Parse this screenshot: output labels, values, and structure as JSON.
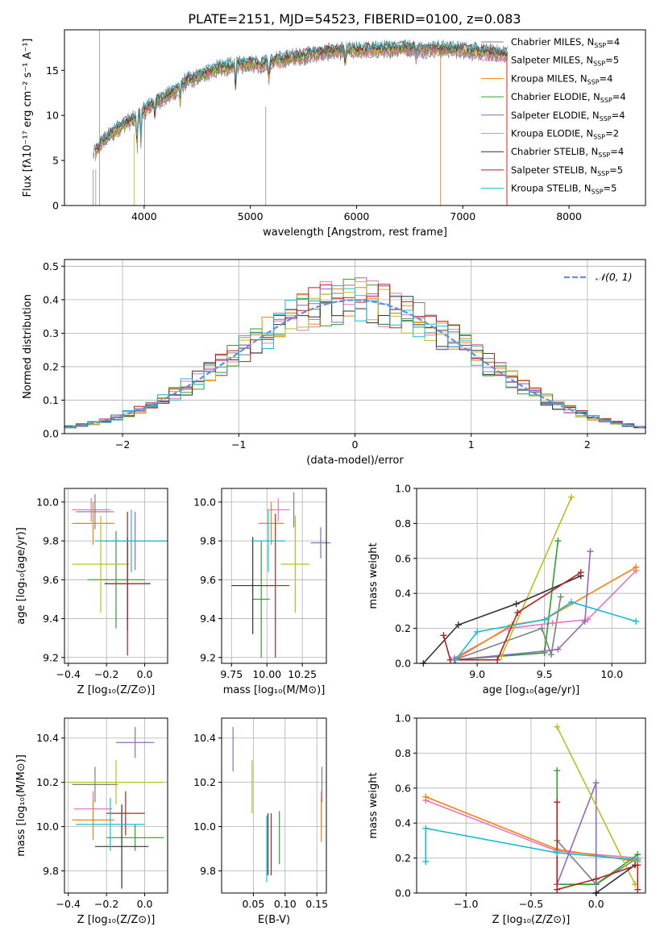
{
  "title": "PLATE=2151, MJD=54523, FIBERID=0100, z=0.083",
  "colors": {
    "Chabrier MILES": "#7f7f7f",
    "Salpeter MILES": "#e377c2",
    "Kroupa MILES": "#ff7f0e",
    "Chabrier ELODIE": "#2ca02c",
    "Salpeter ELODIE": "#9467bd",
    "Kroupa ELODIE": "#bcbd22",
    "Chabrier STELIB": "#333333",
    "Salpeter STELIB": "#b22222",
    "Kroupa STELIB": "#17becf",
    "gauss": "#6a8fd6"
  },
  "chart_data": [
    {
      "id": "spectrum",
      "type": "line",
      "xlabel": "wavelength [Angstrom, rest frame]",
      "ylabel": "Flux [fλ10⁻¹⁷ erg cm⁻² s⁻¹ A⁻¹]",
      "xlim": [
        3250,
        8720
      ],
      "ylim": [
        0,
        19.5
      ],
      "xticks": [
        "4000",
        "5000",
        "6000",
        "7000",
        "8000"
      ],
      "yticks": [
        "0",
        "5",
        "10",
        "15"
      ],
      "grid": false,
      "legend_position": "right",
      "legend": [
        "Chabrier MILES, N_SSP=4",
        "Salpeter MILES, N_SSP=5",
        "Kroupa MILES, N_SSP=4",
        "Chabrier ELODIE, N_SSP=4",
        "Salpeter ELODIE, N_SSP=4",
        "Kroupa ELODIE, N_SSP=2",
        "Chabrier STELIB, N_SSP=4",
        "Salpeter STELIB, N_SSP=5",
        "Kroupa STELIB, N_SSP=5"
      ],
      "data_curve": {
        "x": [
          3520,
          3600,
          3700,
          3800,
          3900,
          4000,
          4100,
          4200,
          4300,
          4400,
          4500,
          4600,
          4700,
          4800,
          4900,
          5000,
          5100,
          5200,
          5300,
          5400,
          5500,
          5600,
          5700,
          5800,
          5900,
          6000,
          6100,
          6200,
          6300,
          6400,
          6500,
          6600,
          6700,
          6800,
          6900,
          7000,
          7100,
          7200,
          7300,
          7400
        ],
        "y": [
          5.5,
          7.0,
          8.0,
          9.0,
          9.5,
          10.5,
          11.5,
          12.0,
          12.8,
          13.8,
          14.2,
          14.8,
          15.2,
          15.4,
          15.6,
          15.8,
          15.6,
          16.0,
          16.2,
          16.5,
          16.6,
          16.8,
          17.0,
          17.1,
          17.2,
          17.2,
          17.3,
          17.3,
          17.4,
          17.5,
          17.5,
          17.3,
          17.4,
          17.4,
          17.3,
          17.3,
          17.1,
          17.0,
          16.9,
          16.8
        ]
      }
    },
    {
      "id": "residuals",
      "type": "bar",
      "xlabel": "(data-model)/error",
      "ylabel": "Normed distribution",
      "xlim": [
        -2.5,
        2.5
      ],
      "ylim": [
        0,
        0.52
      ],
      "xticks": [
        "−2",
        "−1",
        "0",
        "1",
        "2"
      ],
      "yticks": [
        "0.0",
        "0.1",
        "0.2",
        "0.3",
        "0.4",
        "0.5"
      ],
      "grid": true,
      "legend_position": "top-right",
      "legend": [
        "𝒩(0, 1)"
      ],
      "bin_width": 0.1
    },
    {
      "id": "age-vs-Z",
      "type": "scatter",
      "xlabel": "Z [log₁₀(Z/Z⊙)]",
      "ylabel": "age  [log₁₀(age/yr)]",
      "xlim": [
        -0.42,
        0.12
      ],
      "ylim": [
        9.17,
        10.07
      ],
      "xticks": [
        "−0.4",
        "−0.2",
        "0.0"
      ],
      "yticks": [
        "9.2",
        "9.4",
        "9.6",
        "9.8",
        "10.0"
      ],
      "grid": true,
      "points": [
        {
          "x": -0.26,
          "xerr": 0.1,
          "y": 9.95,
          "yerr": 0.09
        },
        {
          "x": -0.28,
          "xerr": 0.1,
          "y": 9.96,
          "yerr": 0.06
        },
        {
          "x": -0.27,
          "xerr": 0.11,
          "y": 9.89,
          "yerr": 0.11
        },
        {
          "x": -0.15,
          "xerr": 0.15,
          "y": 9.6,
          "yerr": 0.25
        },
        {
          "x": -0.05,
          "xerr": 0.17,
          "y": 9.8,
          "yerr": 0.15
        },
        {
          "x": -0.23,
          "xerr": 0.15,
          "y": 9.68,
          "yerr": 0.25
        },
        {
          "x": -0.09,
          "xerr": 0.12,
          "y": 9.58,
          "yerr": 0.24
        },
        {
          "x": -0.09,
          "xerr": 0.1,
          "y": 9.58,
          "yerr": 0.37
        },
        {
          "x": -0.07,
          "xerr": 0.19,
          "y": 9.8,
          "yerr": 0.16
        }
      ]
    },
    {
      "id": "age-vs-mass",
      "type": "scatter",
      "xlabel": "mass [log₁₀(M/M⊙)]",
      "ylabel": "",
      "xlim": [
        9.68,
        10.42
      ],
      "ylim": [
        9.17,
        10.07
      ],
      "xticks": [
        "9.75",
        "10.00",
        "10.25"
      ],
      "yticks": [
        "9.2",
        "9.4",
        "9.6",
        "9.8",
        "10.0"
      ],
      "grid": true,
      "points": [
        {
          "x": 10.19,
          "xerr": 0.0,
          "y": 9.96,
          "yerr": 0.09
        },
        {
          "x": 10.08,
          "xerr": 0.08,
          "y": 9.96,
          "yerr": 0.06
        },
        {
          "x": 10.03,
          "xerr": 0.09,
          "y": 9.89,
          "yerr": 0.11
        },
        {
          "x": 9.96,
          "xerr": 0.06,
          "y": 9.5,
          "yerr": 0.3
        },
        {
          "x": 10.38,
          "xerr": 0.07,
          "y": 9.79,
          "yerr": 0.08
        },
        {
          "x": 10.2,
          "xerr": 0.1,
          "y": 9.68,
          "yerr": 0.25
        },
        {
          "x": 9.9,
          "xerr": 0.15,
          "y": 9.57,
          "yerr": 0.25
        },
        {
          "x": 10.06,
          "xerr": 0.1,
          "y": 9.57,
          "yerr": 0.37
        },
        {
          "x": 10.01,
          "xerr": 0.12,
          "y": 9.8,
          "yerr": 0.16
        }
      ]
    },
    {
      "id": "weight-vs-age",
      "type": "line",
      "xlabel": "age  [log₁₀(age/yr)]",
      "ylabel": "mass weight",
      "xlim": [
        8.55,
        10.25
      ],
      "ylim": [
        0,
        1
      ],
      "xticks": [
        "9.0",
        "9.5",
        "10.0"
      ],
      "yticks": [
        "0.0",
        "0.2",
        "0.4",
        "0.6",
        "0.8",
        "1.0"
      ],
      "grid": true,
      "series": [
        {
          "x": [
            8.83,
            9.48,
            9.55,
            9.62
          ],
          "y": [
            0.02,
            0.2,
            0.05,
            0.38
          ]
        },
        {
          "x": [
            8.83,
            9.23,
            9.56,
            9.82,
            10.18
          ],
          "y": [
            0.03,
            0.2,
            0.23,
            0.25,
            0.53
          ]
        },
        {
          "x": [
            8.83,
            9.26,
            9.5,
            10.18
          ],
          "y": [
            0.02,
            0.22,
            0.25,
            0.55
          ]
        },
        {
          "x": [
            8.83,
            9.5,
            9.6
          ],
          "y": [
            0.02,
            0.06,
            0.7
          ]
        },
        {
          "x": [
            8.83,
            9.5,
            9.6,
            9.8,
            9.84
          ],
          "y": [
            0.02,
            0.07,
            0.08,
            0.24,
            0.64
          ]
        },
        {
          "x": [
            9.18,
            9.7
          ],
          "y": [
            0.04,
            0.95
          ]
        },
        {
          "x": [
            8.6,
            8.86,
            9.29,
            9.77
          ],
          "y": [
            0.0,
            0.22,
            0.34,
            0.5
          ]
        },
        {
          "x": [
            8.75,
            8.8,
            9.15,
            9.3,
            9.77
          ],
          "y": [
            0.16,
            0.02,
            0.02,
            0.29,
            0.52
          ]
        },
        {
          "x": [
            8.84,
            9.0,
            9.5,
            9.7,
            10.18
          ],
          "y": [
            0.02,
            0.18,
            0.25,
            0.35,
            0.24
          ]
        }
      ]
    },
    {
      "id": "mass-vs-Z",
      "type": "scatter",
      "xlabel": "Z [log₁₀(Z/Z⊙)]",
      "ylabel": "mass [log₁₀(M/M⊙)]",
      "xlim": [
        -0.42,
        0.12
      ],
      "ylim": [
        9.7,
        10.49
      ],
      "xticks": [
        "−0.4",
        "−0.2",
        "0.0"
      ],
      "yticks": [
        "9.8",
        "10.0",
        "10.2",
        "10.4"
      ],
      "grid": true,
      "points": [
        {
          "x": -0.26,
          "xerr": 0.12,
          "y": 10.19,
          "yerr": 0.08
        },
        {
          "x": -0.27,
          "xerr": 0.1,
          "y": 10.08,
          "yerr": 0.08
        },
        {
          "x": -0.27,
          "xerr": 0.11,
          "y": 10.03,
          "yerr": 0.09
        },
        {
          "x": -0.05,
          "xerr": 0.15,
          "y": 9.95,
          "yerr": 0.06
        },
        {
          "x": -0.05,
          "xerr": 0.1,
          "y": 10.38,
          "yerr": 0.07
        },
        {
          "x": -0.15,
          "xerr": 0.25,
          "y": 10.2,
          "yerr": 0.1
        },
        {
          "x": -0.12,
          "xerr": 0.14,
          "y": 9.91,
          "yerr": 0.19
        },
        {
          "x": -0.1,
          "xerr": 0.1,
          "y": 10.06,
          "yerr": 0.1
        },
        {
          "x": -0.18,
          "xerr": 0.18,
          "y": 10.01,
          "yerr": 0.12
        }
      ]
    },
    {
      "id": "mass-vs-EBV",
      "type": "scatter",
      "xlabel": "E(B-V)",
      "ylabel": "",
      "xlim": [
        0.0,
        0.165
      ],
      "ylim": [
        9.7,
        10.49
      ],
      "xticks": [
        "0.05",
        "0.10",
        "0.15"
      ],
      "yticks": [
        "9.8",
        "10.0",
        "10.2",
        "10.4"
      ],
      "grid": true,
      "points": [
        {
          "x": 0.158,
          "xerr": 0.0,
          "y": 10.19,
          "yerr": 0.08
        },
        {
          "x": 0.157,
          "xerr": 0.0,
          "y": 10.08,
          "yerr": 0.08
        },
        {
          "x": 0.157,
          "xerr": 0.0,
          "y": 10.03,
          "yerr": 0.1
        },
        {
          "x": 0.091,
          "xerr": 0.0,
          "y": 9.95,
          "yerr": 0.12
        },
        {
          "x": 0.018,
          "xerr": 0.0,
          "y": 10.35,
          "yerr": 0.1
        },
        {
          "x": 0.048,
          "xerr": 0.0,
          "y": 10.18,
          "yerr": 0.12
        },
        {
          "x": 0.073,
          "xerr": 0.0,
          "y": 9.92,
          "yerr": 0.14
        },
        {
          "x": 0.078,
          "xerr": 0.0,
          "y": 9.92,
          "yerr": 0.14
        },
        {
          "x": 0.071,
          "xerr": 0.0,
          "y": 9.9,
          "yerr": 0.15
        }
      ]
    },
    {
      "id": "weight-vs-Z",
      "type": "line",
      "xlabel": "Z [log₁₀(Z/Z⊙)]",
      "ylabel": "mass weight",
      "xlim": [
        -1.38,
        0.38
      ],
      "ylim": [
        0,
        1
      ],
      "xticks": [
        "−1.0",
        "−0.5",
        "0.0"
      ],
      "yticks": [
        "0.0",
        "0.2",
        "0.4",
        "0.6",
        "0.8",
        "1.0"
      ],
      "grid": true,
      "series": [
        {
          "x": [
            -0.3,
            -0.3,
            0.0,
            0.32
          ],
          "y": [
            0.05,
            0.3,
            0.05,
            0.2
          ]
        },
        {
          "x": [
            -1.31,
            -0.3,
            0.32
          ],
          "y": [
            0.53,
            0.24,
            0.2
          ]
        },
        {
          "x": [
            -1.31,
            -0.3,
            0.32
          ],
          "y": [
            0.55,
            0.25,
            0.18
          ]
        },
        {
          "x": [
            -0.3,
            -0.3,
            0.0,
            0.32
          ],
          "y": [
            0.7,
            0.05,
            0.05,
            0.22
          ]
        },
        {
          "x": [
            -0.3,
            0.0,
            0.0
          ],
          "y": [
            0.05,
            0.63,
            0.0
          ]
        },
        {
          "x": [
            -0.3,
            0.3
          ],
          "y": [
            0.95,
            0.05
          ]
        },
        {
          "x": [
            0.0,
            0.3
          ],
          "y": [
            0.0,
            0.16
          ]
        },
        {
          "x": [
            -0.3,
            -0.3,
            0.0,
            0.32,
            0.32
          ],
          "y": [
            0.52,
            0.02,
            0.08,
            0.16,
            0.02
          ]
        },
        {
          "x": [
            -1.31,
            -1.31,
            -0.3,
            0.32
          ],
          "y": [
            0.18,
            0.37,
            0.23,
            0.19
          ]
        }
      ]
    }
  ]
}
